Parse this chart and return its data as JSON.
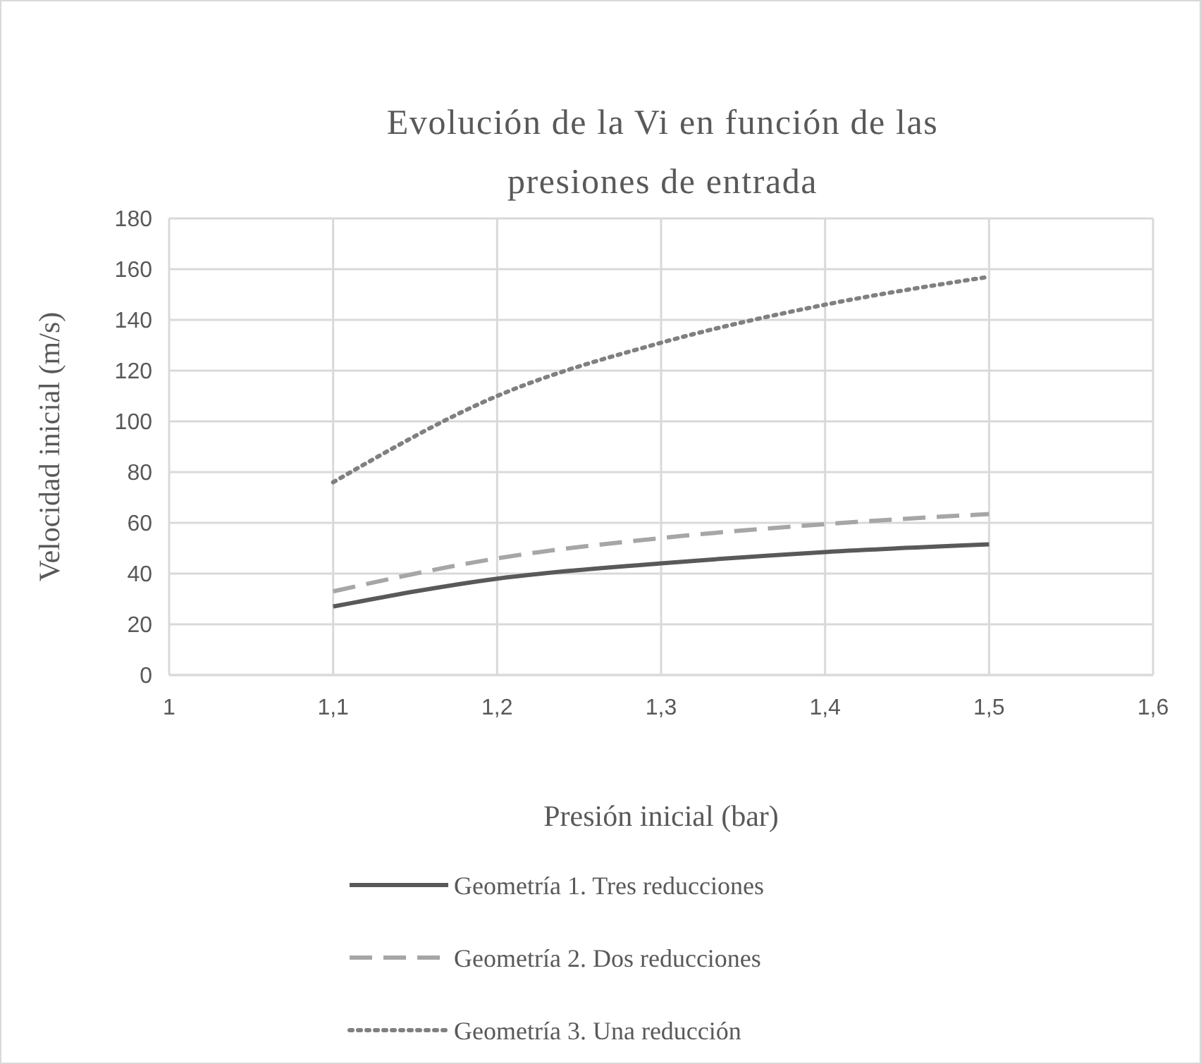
{
  "chart_data": {
    "type": "line",
    "title": "Evolución de la Vi en función de las presiones de entrada",
    "xlabel": "Presión inicial (bar)",
    "ylabel": "Velocidad inicial (m/s)",
    "x": [
      1.1,
      1.2,
      1.3,
      1.4,
      1.5
    ],
    "series": [
      {
        "name": "Geometría 1. Tres reducciones",
        "color": "#595959",
        "line_style": "solid",
        "values": [
          27,
          38,
          44,
          48.5,
          51.5
        ]
      },
      {
        "name": "Geometría 2. Dos reducciones",
        "color": "#a6a6a6",
        "line_style": "dashed",
        "values": [
          33,
          46,
          54,
          59.5,
          63.5
        ]
      },
      {
        "name": "Geometría 3. Una reducción",
        "color": "#808080",
        "line_style": "dotted",
        "values": [
          76,
          110,
          131,
          146,
          157
        ]
      }
    ],
    "xlim": [
      1,
      1.6
    ],
    "xticks": [
      1,
      {
        "value": 1.1,
        "label": "1,1"
      },
      {
        "value": 1.2,
        "label": "1,2"
      },
      {
        "value": 1.3,
        "label": "1,3"
      },
      {
        "value": 1.4,
        "label": "1,4"
      },
      {
        "value": 1.5,
        "label": "1,5"
      },
      {
        "value": 1.6,
        "label": "1,6"
      }
    ],
    "ylim": [
      0,
      180
    ],
    "yticks": [
      0,
      20,
      40,
      60,
      80,
      100,
      120,
      140,
      160,
      180
    ],
    "grid": true,
    "legend": "bottom"
  }
}
